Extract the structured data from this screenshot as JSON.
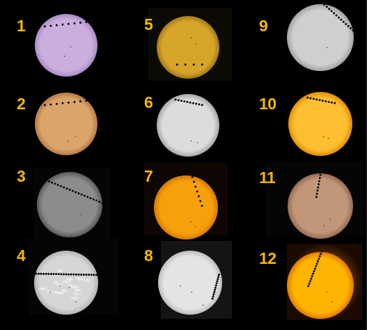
{
  "panels": [
    {
      "label": "1",
      "disk": "#c9aede",
      "rim": "#a98cc6",
      "bg": "#000000",
      "track": "arc-top"
    },
    {
      "label": "2",
      "disk": "#dba46a",
      "rim": "#b37a45",
      "bg": "#000000",
      "track": "arc-top"
    },
    {
      "label": "3",
      "disk": "#8c8c8c",
      "rim": "#5a5a5a",
      "bg": "#050505",
      "track": "diag-down"
    },
    {
      "label": "4",
      "disk": "#d6d6d6",
      "rim": "#b4b4b4",
      "bg": "#050505",
      "track": "flat"
    },
    {
      "label": "5",
      "disk": "#d6a52a",
      "rim": "#a47a18",
      "bg": "#0c0a05",
      "track": "flat-low"
    },
    {
      "label": "6",
      "disk": "#dcdcdc",
      "rim": "#a6a6a6",
      "bg": "#000000",
      "track": "short-top"
    },
    {
      "label": "7",
      "disk": "#f6a10a",
      "rim": "#d67a00",
      "bg": "#0e0603",
      "track": "steep-top"
    },
    {
      "label": "8",
      "disk": "#e4e4e4",
      "rim": "#bdbdbd",
      "bg": "#141414",
      "track": "steep-right"
    },
    {
      "label": "9",
      "disk": "#cfcfcf",
      "rim": "#a3a3a3",
      "bg": "#000000",
      "track": "diag-steep"
    },
    {
      "label": "10",
      "disk": "#ffbf32",
      "rim": "#e08e00",
      "bg": "#000000",
      "track": "short-top"
    },
    {
      "label": "11",
      "disk": "#c29678",
      "rim": "#946a52",
      "bg": "#050505",
      "track": "near-vertical"
    },
    {
      "label": "12",
      "disk": "#ffb400",
      "rim": "#e27a00",
      "bg": "#2a1400",
      "track": "steep-left"
    }
  ],
  "colors": {
    "label": "#f5b800",
    "background": "#000000",
    "transit_dot": "#0a0a0a"
  }
}
